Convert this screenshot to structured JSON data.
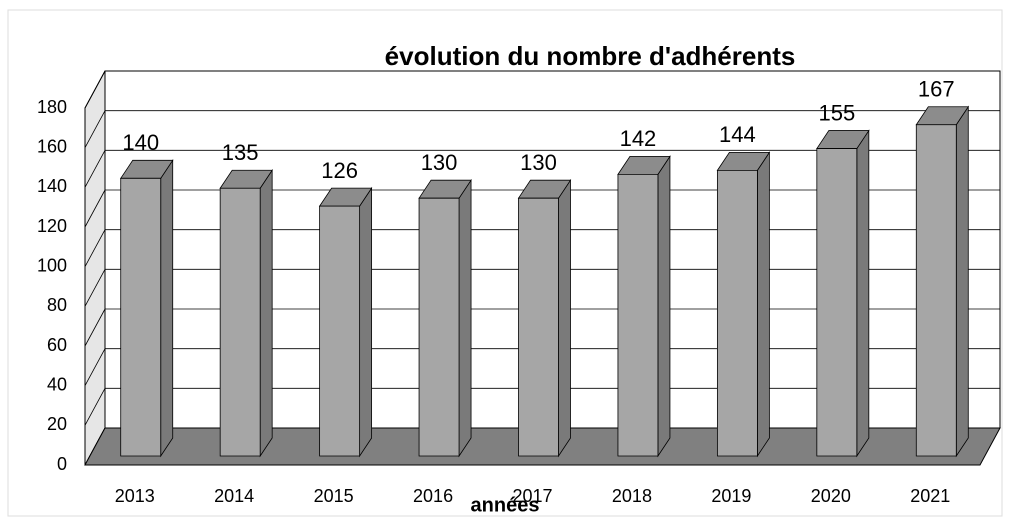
{
  "chart_data": {
    "type": "bar",
    "title": "évolution du nombre d'adhérents",
    "x_label": "années",
    "categories": [
      "2013",
      "2014",
      "2015",
      "2016",
      "2017",
      "2018",
      "2019",
      "2020",
      "2021"
    ],
    "values": [
      140,
      135,
      126,
      130,
      130,
      142,
      144,
      155,
      167
    ],
    "color": "#a6a6a6",
    "ylim": [
      0,
      180
    ],
    "yticks": [
      0,
      20,
      40,
      60,
      80,
      100,
      120,
      140,
      160,
      180
    ],
    "grid": true
  }
}
